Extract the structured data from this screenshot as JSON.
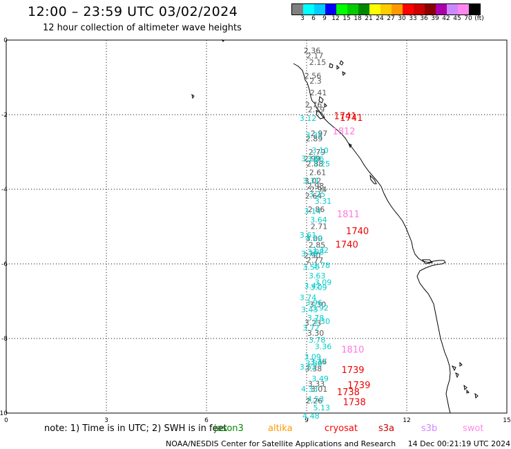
{
  "header": {
    "title": "12:00 – 23:59 UTC 03/02/2024",
    "subtitle": "12 hour collection of altimeter wave heights"
  },
  "scale": {
    "colors": [
      "#808080",
      "#00ffff",
      "#00ccff",
      "#0000ff",
      "#00ff00",
      "#00cc00",
      "#008800",
      "#ffff00",
      "#ffcc00",
      "#ff9900",
      "#ff0000",
      "#cc0000",
      "#880000",
      "#aa00aa",
      "#cc88ff",
      "#ff88ee",
      "#000000"
    ],
    "labels": [
      "3",
      "6",
      "9",
      "12",
      "15",
      "18",
      "21",
      "24",
      "27",
      "30",
      "33",
      "36",
      "39",
      "42",
      "45",
      "70",
      "(ft)"
    ]
  },
  "axes": {
    "x_ticks": [
      "0",
      "3",
      "6",
      "9",
      "12",
      "15"
    ],
    "y_ticks": [
      "0",
      "-2",
      "-4",
      "-6",
      "-8",
      "-10"
    ]
  },
  "observations": {
    "gray": [
      {
        "lat": -0.1,
        "t": "2.36"
      },
      {
        "lat": -0.25,
        "t": "2.17"
      },
      {
        "lat": -0.45,
        "t": "2.15"
      },
      {
        "lat": -0.85,
        "t": "2.56"
      },
      {
        "lat": -1.0,
        "t": "2.3"
      },
      {
        "lat": -1.35,
        "t": "2.41"
      },
      {
        "lat": -1.7,
        "t": "2.76"
      },
      {
        "lat": -1.85,
        "t": "2.19"
      },
      {
        "lat": -2.55,
        "t": "2.97"
      },
      {
        "lat": -2.7,
        "t": "2.89"
      },
      {
        "lat": -3.1,
        "t": "2.79"
      },
      {
        "lat": -3.3,
        "t": "2.99"
      },
      {
        "lat": -3.45,
        "t": "2.88"
      },
      {
        "lat": -3.7,
        "t": "2.61"
      },
      {
        "lat": -3.95,
        "t": "3.02"
      },
      {
        "lat": -4.1,
        "t": "2.98"
      },
      {
        "lat": -4.2,
        "t": "2.94"
      },
      {
        "lat": -4.4,
        "t": "2.64"
      },
      {
        "lat": -4.8,
        "t": "2.86"
      },
      {
        "lat": -5.3,
        "t": "2.71"
      },
      {
        "lat": -5.65,
        "t": "3.00"
      },
      {
        "lat": -5.85,
        "t": "2.85"
      },
      {
        "lat": -6.15,
        "t": "2.90"
      },
      {
        "lat": -6.3,
        "t": "2.77"
      },
      {
        "lat": -7.6,
        "t": "3.30"
      },
      {
        "lat": -8.15,
        "t": "3.23"
      },
      {
        "lat": -8.45,
        "t": "3.30"
      },
      {
        "lat": -9.3,
        "t": "3.36"
      },
      {
        "lat": -9.5,
        "t": "3.38"
      },
      {
        "lat": -9.95,
        "t": "3.33"
      },
      {
        "lat": -10.1,
        "t": "3.01"
      },
      {
        "lat": -10.45,
        "t": "2.26"
      }
    ],
    "cyan": [
      {
        "lat": -2.1,
        "t": "3.12"
      },
      {
        "lat": -2.6,
        "t": "3.35"
      },
      {
        "lat": -3.05,
        "t": "3.10"
      },
      {
        "lat": -3.3,
        "t": "3.15"
      },
      {
        "lat": -3.3,
        "t": "3.06"
      },
      {
        "lat": -3.45,
        "t": "3.25"
      },
      {
        "lat": -3.95,
        "t": "3.31"
      },
      {
        "lat": -4.35,
        "t": "3.25"
      },
      {
        "lat": -4.55,
        "t": "3.31"
      },
      {
        "lat": -4.85,
        "t": "3.14"
      },
      {
        "lat": -5.1,
        "t": "3.64"
      },
      {
        "lat": -5.55,
        "t": "3.61"
      },
      {
        "lat": -5.65,
        "t": "4.29"
      },
      {
        "lat": -6.0,
        "t": "3.32"
      },
      {
        "lat": -6.1,
        "t": "3.78"
      },
      {
        "lat": -6.05,
        "t": "3.08"
      },
      {
        "lat": -6.45,
        "t": "3.78"
      },
      {
        "lat": -6.5,
        "t": "3.50"
      },
      {
        "lat": -6.75,
        "t": "3.63"
      },
      {
        "lat": -6.95,
        "t": "3.09"
      },
      {
        "lat": -7.05,
        "t": "3.42"
      },
      {
        "lat": -7.1,
        "t": "3.09"
      },
      {
        "lat": -7.4,
        "t": "3.74"
      },
      {
        "lat": -7.55,
        "t": "3.96"
      },
      {
        "lat": -7.7,
        "t": "3.92"
      },
      {
        "lat": -7.75,
        "t": "3.43"
      },
      {
        "lat": -8.0,
        "t": "3.78"
      },
      {
        "lat": -8.1,
        "t": "3.30"
      },
      {
        "lat": -8.3,
        "t": "3.72"
      },
      {
        "lat": -8.65,
        "t": "3.78"
      },
      {
        "lat": -8.85,
        "t": "3.36"
      },
      {
        "lat": -9.15,
        "t": "3.09"
      },
      {
        "lat": -9.3,
        "t": "3.47"
      },
      {
        "lat": -9.45,
        "t": "3.52"
      },
      {
        "lat": -9.35,
        "t": "3.30"
      },
      {
        "lat": -9.8,
        "t": "3.49"
      },
      {
        "lat": -10.1,
        "t": "4.33"
      },
      {
        "lat": -10.4,
        "t": "4.53"
      },
      {
        "lat": -10.65,
        "t": "5.13"
      },
      {
        "lat": -10.9,
        "t": "4.48"
      }
    ],
    "red": [
      {
        "lat": -2.05,
        "t": "1741"
      },
      {
        "lat": -2.1,
        "t": "1741"
      },
      {
        "lat": -5.45,
        "t": "1740"
      },
      {
        "lat": -5.85,
        "t": "1740"
      },
      {
        "lat": -9.55,
        "t": "1739"
      },
      {
        "lat": -10.0,
        "t": "1739"
      },
      {
        "lat": -10.2,
        "t": "1738"
      },
      {
        "lat": -10.5,
        "t": "1738"
      }
    ],
    "pink": [
      {
        "lat": -2.5,
        "t": "1812"
      },
      {
        "lat": -4.95,
        "t": "1811"
      },
      {
        "lat": -8.95,
        "t": "1810"
      }
    ]
  },
  "notes": {
    "note": "note:  1) Time is in UTC;  2) SWH is in feet"
  },
  "legend": [
    {
      "label": "jason3",
      "color": "#008800"
    },
    {
      "label": "altika",
      "color": "#ff9900"
    },
    {
      "label": "cryosat",
      "color": "#ff0000"
    },
    {
      "label": "s3a",
      "color": "#cc0000"
    },
    {
      "label": "s3b",
      "color": "#cc88ff"
    },
    {
      "label": "swot",
      "color": "#ff88ee"
    }
  ],
  "footer": {
    "credit": "NOAA/NESDIS Center for Satellite Applications and Research",
    "timestamp": "14 Dec 00:21:19 UTC 2024"
  }
}
